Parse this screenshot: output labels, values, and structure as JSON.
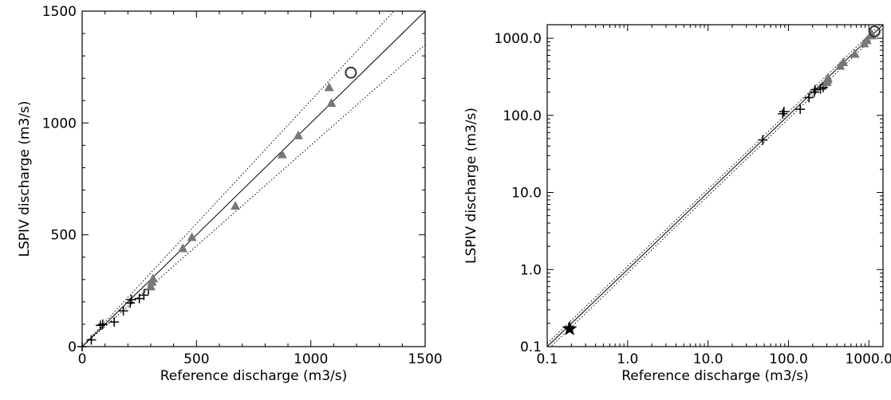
{
  "chart_data": [
    {
      "type": "scatter",
      "xlabel": "Reference discharge (m3/s)",
      "ylabel": "LSPIV discharge (m3/s)",
      "xlim": [
        0,
        1500
      ],
      "ylim": [
        0,
        1500
      ],
      "scale": "linear",
      "xticks": [
        0,
        500,
        1000,
        1500
      ],
      "yticks": [
        0,
        500,
        1000,
        1500
      ],
      "xtick_labels": [
        "0",
        "500",
        "1000",
        "1500"
      ],
      "ytick_labels": [
        "0",
        "500",
        "1000",
        "1500"
      ],
      "grid": false,
      "lines": [
        {
          "style": "solid",
          "x": [
            0,
            1500
          ],
          "y": [
            0,
            1500
          ]
        },
        {
          "style": "dotted",
          "x": [
            0,
            1500
          ],
          "y": [
            0,
            1650
          ]
        },
        {
          "style": "dotted",
          "x": [
            0,
            1500
          ],
          "y": [
            0,
            1350
          ]
        }
      ],
      "series": [
        {
          "marker": "plus",
          "color": "#000000",
          "points": [
            [
              0,
              0
            ],
            [
              40,
              30
            ],
            [
              80,
              95
            ],
            [
              90,
              100
            ],
            [
              140,
              110
            ],
            [
              180,
              160
            ],
            [
              210,
              195
            ],
            [
              215,
              210
            ],
            [
              250,
              215
            ],
            [
              270,
              230
            ],
            [
              290,
              255
            ]
          ]
        },
        {
          "marker": "triangle",
          "color": "#777777",
          "points": [
            [
              300,
              270
            ],
            [
              305,
              290
            ],
            [
              310,
              305
            ],
            [
              440,
              440
            ],
            [
              480,
              490
            ],
            [
              670,
              630
            ],
            [
              875,
              860
            ],
            [
              945,
              945
            ],
            [
              1080,
              1160
            ],
            [
              1090,
              1090
            ]
          ]
        },
        {
          "marker": "circle",
          "color": "#333333",
          "points": [
            [
              1175,
              1225
            ]
          ]
        }
      ]
    },
    {
      "type": "scatter",
      "xlabel": "Reference discharge (m3/s)",
      "ylabel": "LSPIV discharge (m3/s)",
      "xlim": [
        0.1,
        1500
      ],
      "ylim": [
        0.1,
        1500
      ],
      "scale": "log",
      "xticks": [
        0.1,
        1,
        10,
        100,
        1000
      ],
      "yticks": [
        0.1,
        1,
        10,
        100,
        1000
      ],
      "xtick_labels": [
        "0.1",
        "1.0",
        "10.0",
        "100.0",
        "1000.0"
      ],
      "ytick_labels": [
        "0.1",
        "1.0",
        "10.0",
        "100.0",
        "1000.0"
      ],
      "grid": false,
      "lines": [
        {
          "style": "solid",
          "x": [
            0.1,
            1500
          ],
          "y": [
            0.1,
            1500
          ]
        },
        {
          "style": "dotted",
          "x": [
            0.1,
            1500
          ],
          "y": [
            0.11,
            1650
          ]
        },
        {
          "style": "dotted",
          "x": [
            0.1,
            1500
          ],
          "y": [
            0.09,
            1350
          ]
        }
      ],
      "series": [
        {
          "marker": "star",
          "color": "#000000",
          "points": [
            [
              0.19,
              0.17
            ]
          ]
        },
        {
          "marker": "plus",
          "color": "#000000",
          "points": [
            [
              48,
              48
            ],
            [
              85,
              105
            ],
            [
              88,
              112
            ],
            [
              140,
              120
            ],
            [
              180,
              170
            ],
            [
              210,
              200
            ],
            [
              215,
              215
            ],
            [
              250,
              220
            ],
            [
              270,
              230
            ],
            [
              290,
              250
            ]
          ]
        },
        {
          "marker": "triangle",
          "color": "#777777",
          "points": [
            [
              300,
              270
            ],
            [
              305,
              290
            ],
            [
              310,
              305
            ],
            [
              440,
              440
            ],
            [
              480,
              490
            ],
            [
              670,
              630
            ],
            [
              875,
              860
            ],
            [
              945,
              945
            ],
            [
              1080,
              1160
            ],
            [
              1090,
              1090
            ]
          ]
        },
        {
          "marker": "circle",
          "color": "#333333",
          "points": [
            [
              1175,
              1225
            ]
          ]
        }
      ]
    }
  ]
}
